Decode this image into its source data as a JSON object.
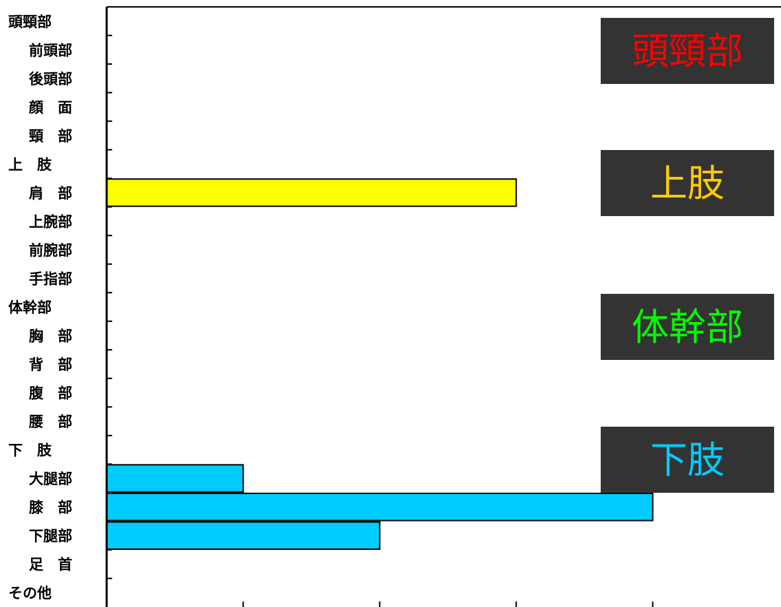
{
  "chart_data": {
    "type": "bar",
    "orientation": "horizontal",
    "categories": [
      "頭頸部",
      "前頭部",
      "後頭部",
      "顔　面",
      "頸　部",
      "上　肢",
      "肩　部",
      "上腕部",
      "前腕部",
      "手指部",
      "体幹部",
      "胸　部",
      "背　部",
      "腹　部",
      "腰　部",
      "下　肢",
      "大腿部",
      "膝　部",
      "下腿部",
      "足　首",
      "その他"
    ],
    "group_headers": [
      "頭頸部",
      "上　肢",
      "体幹部",
      "下　肢",
      "その他"
    ],
    "values": [
      0,
      0,
      0,
      0,
      0,
      0,
      3,
      0,
      0,
      0,
      0,
      0,
      0,
      0,
      0,
      0,
      1,
      4,
      2,
      0,
      0
    ],
    "bar_colors": [
      "#ff0000",
      "#ff0000",
      "#ff0000",
      "#ff0000",
      "#ff0000",
      "#ffff00",
      "#ffff00",
      "#ffff00",
      "#ffff00",
      "#ffff00",
      "#00ff00",
      "#00ff00",
      "#00ff00",
      "#00ff00",
      "#00ff00",
      "#00ccff",
      "#00ccff",
      "#00ccff",
      "#00ccff",
      "#00ccff",
      "#888888"
    ],
    "xlim": [
      0,
      5
    ],
    "x_ticks": [
      0,
      1,
      2,
      3,
      4,
      5
    ],
    "show_tick_labels": false,
    "grid": false,
    "legend_boxes": [
      {
        "text": "頭頸部",
        "color": "#ff0000"
      },
      {
        "text": "上肢",
        "color": "#ffcc00"
      },
      {
        "text": "体幹部",
        "color": "#00ff00"
      },
      {
        "text": "下肢",
        "color": "#00ccff"
      }
    ],
    "legend_box_background": "#333333",
    "title": "",
    "xlabel": "",
    "ylabel": ""
  }
}
